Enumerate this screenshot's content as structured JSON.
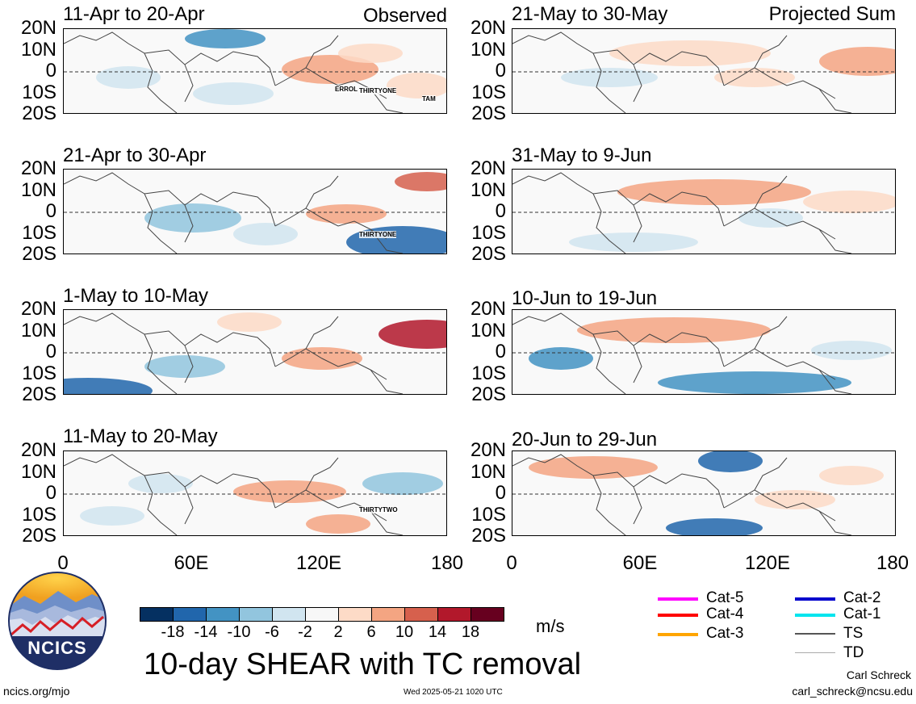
{
  "header": {
    "observed_label": "Observed",
    "projected_label": "Projected Sum"
  },
  "panels": [
    {
      "title": "11-Apr to 20-Apr",
      "group": "observed",
      "storms": [
        "ERROL",
        "THIRTYONE",
        "TAM"
      ]
    },
    {
      "title": "21-Apr to 30-Apr",
      "group": "observed",
      "storms": [
        "THIRTYONE"
      ]
    },
    {
      "title": "1-May to 10-May",
      "group": "observed",
      "storms": []
    },
    {
      "title": "11-May to 20-May",
      "group": "observed",
      "storms": [
        "THIRTYTWO"
      ]
    },
    {
      "title": "21-May to 30-May",
      "group": "projected",
      "storms": []
    },
    {
      "title": "31-May to 9-Jun",
      "group": "projected",
      "storms": []
    },
    {
      "title": "10-Jun to 19-Jun",
      "group": "projected",
      "storms": []
    },
    {
      "title": "20-Jun to 29-Jun",
      "group": "projected",
      "storms": []
    }
  ],
  "lat_labels": [
    "20N",
    "10N",
    "0",
    "10S",
    "20S"
  ],
  "lon_labels": [
    "0",
    "60E",
    "120E",
    "180"
  ],
  "colorbar": {
    "colors": [
      "#053061",
      "#2166ac",
      "#4393c3",
      "#92c5de",
      "#d1e5f0",
      "#f7f7f7",
      "#fddbc7",
      "#f4a582",
      "#d6604d",
      "#b2182b",
      "#67001f"
    ],
    "labels": [
      "-18",
      "-14",
      "-10",
      "-6",
      "-2",
      "2",
      "6",
      "10",
      "14",
      "18"
    ],
    "units": "m/s"
  },
  "legend": [
    {
      "label": "Cat-5",
      "color": "#ff00ff"
    },
    {
      "label": "Cat-4",
      "color": "#ff0000"
    },
    {
      "label": "Cat-3",
      "color": "#ffa500"
    },
    {
      "label": "Cat-2",
      "color": "#0000cd"
    },
    {
      "label": "Cat-1",
      "color": "#00e5ee"
    },
    {
      "label": "TS",
      "color": "#555555"
    },
    {
      "label": "TD",
      "color": "#aaaaaa"
    }
  ],
  "logo_text": "NCICS",
  "main_title": "10-day SHEAR with TC removal",
  "footer": {
    "url": "ncics.org/mjo",
    "timestamp": "Wed 2025-05-21 1020 UTC",
    "author": "Carl Schreck",
    "email": "carl_schreck@ncsu.edu"
  }
}
